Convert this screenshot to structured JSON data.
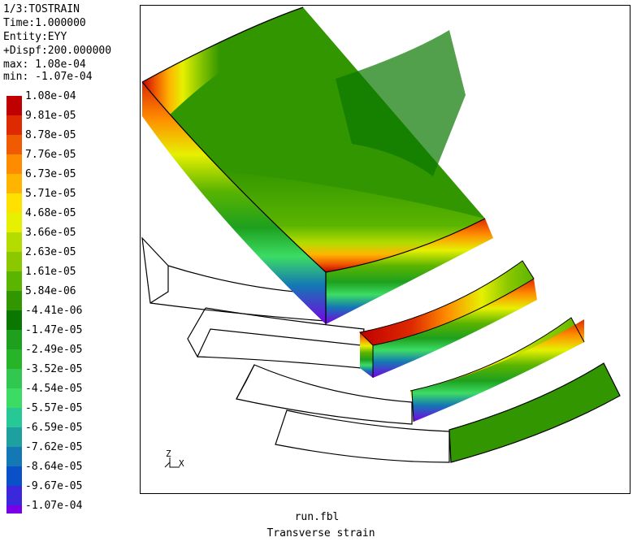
{
  "header": {
    "line1": "1/3:TOSTRAIN",
    "line2": "Time:1.000000",
    "line3": "Entity:EYY",
    "line4": "+Dispf:200.000000",
    "line5": "max: 1.08e-04",
    "line6": "min: -1.07e-04"
  },
  "legend": {
    "labels": [
      "1.08e-04",
      "9.81e-05",
      "8.78e-05",
      "7.76e-05",
      "6.73e-05",
      "5.71e-05",
      "4.68e-05",
      "3.66e-05",
      "2.63e-05",
      "1.61e-05",
      "5.84e-06",
      "-4.41e-06",
      "-1.47e-05",
      "-2.49e-05",
      "-3.52e-05",
      "-4.54e-05",
      "-5.57e-05",
      "-6.59e-05",
      "-7.62e-05",
      "-8.64e-05",
      "-9.67e-05",
      "-1.07e-04"
    ],
    "colors": [
      "#c00000",
      "#de2a00",
      "#f05a00",
      "#ff8c00",
      "#ffb400",
      "#ffe100",
      "#e6f000",
      "#b4dc00",
      "#8cc800",
      "#5ab400",
      "#329600",
      "#0a7800",
      "#1ea01e",
      "#28b428",
      "#32c850",
      "#3cdc64",
      "#28c896",
      "#1ea0a0",
      "#1478b4",
      "#0a50c8",
      "#3c28dc",
      "#7800e6"
    ]
  },
  "axis": {
    "z_label": "Z",
    "x_label": "X"
  },
  "footer": {
    "filename": "run.fbl",
    "caption": "Transverse strain"
  }
}
